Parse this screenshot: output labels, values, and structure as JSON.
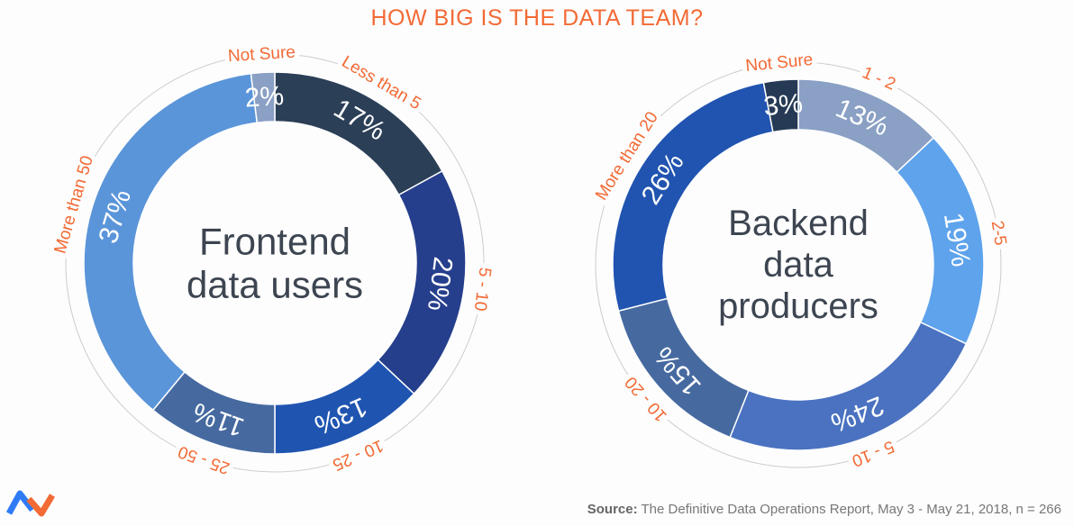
{
  "title": "HOW BIG IS THE DATA TEAM?",
  "source": {
    "label": "Source:",
    "text": "The Definitive Data Operations Report, May 3 - May 21, 2018, n = 266"
  },
  "colors": {
    "accent": "#f26a35",
    "center_text": "#3d4551",
    "guide_arc": "#cccccc"
  },
  "chart_data": [
    {
      "type": "pie",
      "donut": true,
      "center_label": [
        "Frontend",
        "data users"
      ],
      "categories": [
        "Less than 5",
        "5 - 10",
        "10 - 25",
        "25 - 50",
        "More than 50",
        "Not Sure"
      ],
      "values": [
        17,
        20,
        13,
        11,
        37,
        2
      ],
      "value_labels": [
        "17%",
        "20%",
        "13%",
        "11%",
        "37%",
        "2%"
      ],
      "colors": [
        "#2b3f57",
        "#263f8c",
        "#1f55b0",
        "#466aa0",
        "#5b95d9",
        "#8aa0c4"
      ]
    },
    {
      "type": "pie",
      "donut": true,
      "center_label": [
        "Backend",
        "data",
        "producers"
      ],
      "categories": [
        "1 - 2",
        "2-5",
        "5 - 10",
        "10 - 20",
        "More than 20",
        "Not Sure"
      ],
      "values": [
        13,
        19,
        24,
        15,
        26,
        3
      ],
      "value_labels": [
        "13%",
        "19%",
        "24%",
        "15%",
        "26%",
        "3%"
      ],
      "colors": [
        "#8aa0c4",
        "#5ea3ec",
        "#4a72c0",
        "#466aa0",
        "#2154b0",
        "#263a55"
      ]
    }
  ]
}
